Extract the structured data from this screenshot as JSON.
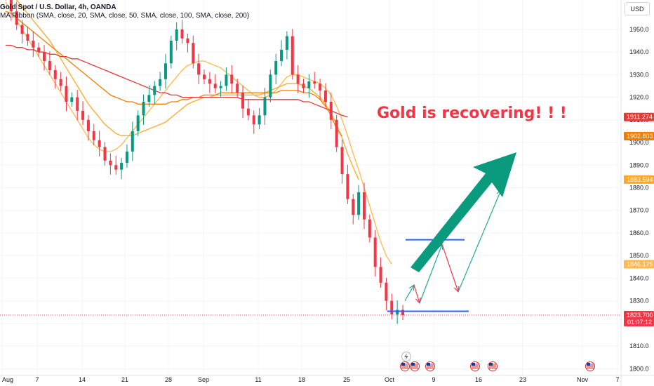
{
  "header": {
    "title": "Gold Spot / U.S. Dollar, 4h, OANDA",
    "indicator": "MA Ribbon (SMA, close, 20, SMA, close, 50, SMA, close, 100, SMA, close, 200)"
  },
  "currency_button": "USD",
  "annotation": "Gold is recovering! ! !",
  "colors": {
    "up": "#089981",
    "down": "#f23645",
    "ma20": "#ffb74d",
    "ma50": "#ffa726",
    "ma100": "#f57c00",
    "ma200": "#e53935",
    "arrow": "#0a9a7d",
    "level": "#2962ff"
  },
  "chart_data": {
    "type": "candlestick",
    "title": "Gold Spot / U.S. Dollar, 4h, OANDA",
    "ylim": [
      1797,
      1963
    ],
    "y_ticks": [
      1800,
      1810,
      1820,
      1830,
      1840,
      1850,
      1860,
      1870,
      1880,
      1890,
      1900,
      1910,
      1920,
      1930,
      1940,
      1950
    ],
    "x_ticks": [
      "Aug",
      "7",
      "14",
      "21",
      "28",
      "Sep",
      "11",
      "18",
      "25",
      "Oct",
      "9",
      "16",
      "23",
      "Nov",
      "7"
    ],
    "price_tags": [
      {
        "value": 1911.274,
        "label": "1911.274",
        "color": "#e53935"
      },
      {
        "value": 1902.803,
        "label": "1902.803",
        "color": "#f57c00"
      },
      {
        "value": 1883.594,
        "label": "1883.594",
        "color": "#ffa726"
      },
      {
        "value": 1846.175,
        "label": "1846.175",
        "color": "#ffb74d"
      },
      {
        "value": 1823.7,
        "label": "1823.700",
        "sublabel": "01:07:12",
        "color": "#f23645"
      }
    ],
    "close_series": [
      1965,
      1958,
      1952,
      1948,
      1945,
      1942,
      1940,
      1936,
      1932,
      1928,
      1925,
      1918,
      1920,
      1914,
      1910,
      1905,
      1901,
      1898,
      1892,
      1890,
      1888,
      1891,
      1896,
      1905,
      1912,
      1918,
      1921,
      1925,
      1928,
      1935,
      1945,
      1950,
      1946,
      1944,
      1935,
      1930,
      1928,
      1926,
      1924,
      1925,
      1930,
      1926,
      1922,
      1915,
      1912,
      1908,
      1912,
      1920,
      1930,
      1936,
      1941,
      1947,
      1930,
      1926,
      1924,
      1927,
      1926,
      1923,
      1918,
      1910,
      1898,
      1886,
      1875,
      1868,
      1878,
      1866,
      1858,
      1845,
      1838,
      1830,
      1824,
      1826,
      1823.7
    ],
    "moving_averages": [
      {
        "name": "SMA 20",
        "color": "#ffb74d",
        "values": [
          1962,
          1958,
          1954,
          1950,
          1946,
          1942,
          1938,
          1934,
          1930,
          1926,
          1922,
          1918,
          1914,
          1910,
          1906,
          1902,
          1899,
          1897,
          1896,
          1896,
          1897,
          1899,
          1902,
          1905,
          1908,
          1911,
          1914,
          1917,
          1920,
          1923,
          1926,
          1929,
          1932,
          1934,
          1935,
          1936,
          1936,
          1935,
          1934,
          1933,
          1931,
          1929,
          1927,
          1925,
          1923,
          1921,
          1920,
          1920,
          1921,
          1923,
          1926,
          1929,
          1930,
          1930,
          1929,
          1928,
          1927,
          1926,
          1924,
          1921,
          1916,
          1910,
          1903,
          1895,
          1888,
          1880,
          1872,
          1864,
          1856,
          1850,
          1846.2,
          null,
          null
        ]
      },
      {
        "name": "SMA 50",
        "color": "#ffa726",
        "values": [
          1968,
          1966,
          1963,
          1960,
          1957,
          1954,
          1951,
          1948,
          1945,
          1941,
          1937,
          1933,
          1929,
          1925,
          1921,
          1917,
          1914,
          1911,
          1908,
          1906,
          1904,
          1903,
          1903,
          1903,
          1904,
          1905,
          1906,
          1907,
          1908,
          1909,
          1911,
          1913,
          1915,
          1917,
          1918,
          1919,
          1920,
          1920,
          1921,
          1921,
          1921,
          1921,
          1921,
          1921,
          1921,
          1921,
          1921,
          1922,
          1923,
          1924,
          1925,
          1926,
          1926,
          1926,
          1925,
          1924,
          1922,
          1920,
          1917,
          1913,
          1908,
          1902,
          1895,
          1889,
          1883.6,
          null,
          null,
          null,
          null,
          null,
          null,
          null,
          null
        ]
      },
      {
        "name": "SMA 100",
        "color": "#f57c00",
        "values": [
          1958,
          1957,
          1955,
          1953,
          1951,
          1949,
          1947,
          1945,
          1943,
          1941,
          1939,
          1937,
          1935,
          1933,
          1931,
          1929,
          1927,
          1925,
          1923,
          1921,
          1920,
          1919,
          1918,
          1918,
          1917,
          1917,
          1917,
          1917,
          1917,
          1917,
          1918,
          1918,
          1919,
          1919,
          1920,
          1920,
          1921,
          1921,
          1921,
          1922,
          1922,
          1922,
          1922,
          1922,
          1922,
          1922,
          1922,
          1922,
          1922,
          1922,
          1923,
          1923,
          1923,
          1923,
          1922,
          1922,
          1921,
          1919,
          1916,
          1912,
          1906,
          1902.8,
          null,
          null,
          null,
          null,
          null,
          null,
          null,
          null,
          null,
          null,
          null
        ]
      },
      {
        "name": "SMA 200",
        "color": "#e53935",
        "values": [
          1943,
          1943,
          1942,
          1942,
          1941,
          1941,
          1940,
          1940,
          1939,
          1939,
          1938,
          1938,
          1937,
          1937,
          1936,
          1935,
          1934,
          1933,
          1932,
          1931,
          1930,
          1929,
          1928,
          1927,
          1926,
          1925,
          1924,
          1923,
          1922,
          1922,
          1921,
          1921,
          1920,
          1920,
          1920,
          1920,
          1920,
          1920,
          1920,
          1920,
          1920,
          1920,
          1920,
          1919,
          1919,
          1919,
          1919,
          1919,
          1919,
          1919,
          1919,
          1919,
          1919,
          1919,
          1918,
          1918,
          1917,
          1916,
          1915,
          1914,
          1913,
          1912,
          1911.3,
          null,
          null,
          null,
          null,
          null,
          null,
          null,
          null,
          null,
          null
        ]
      }
    ],
    "levels": [
      {
        "name": "resistance",
        "value": 1857,
        "color": "#2962ff"
      },
      {
        "name": "support",
        "value": 1825.4,
        "color": "#2962ff"
      }
    ]
  }
}
